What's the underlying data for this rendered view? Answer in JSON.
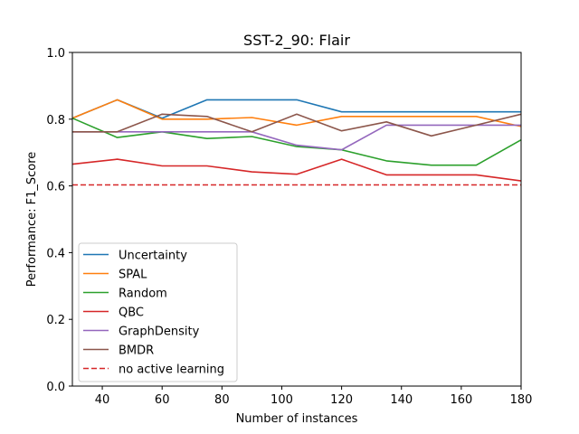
{
  "chart_data": {
    "type": "line",
    "title": "SST-2_90: Flair",
    "xlabel": "Number of instances",
    "ylabel": "Performance: F1_Score",
    "xlim": [
      30,
      180
    ],
    "ylim": [
      0.0,
      1.0
    ],
    "xticks": [
      40,
      60,
      80,
      100,
      120,
      140,
      160,
      180
    ],
    "yticks": [
      0.0,
      0.2,
      0.4,
      0.6,
      0.8,
      1.0
    ],
    "ytick_labels": [
      "0.0",
      "0.2",
      "0.4",
      "0.6",
      "0.8",
      "1.0"
    ],
    "grid": false,
    "legend_position": "lower-left",
    "x": [
      30,
      45,
      60,
      75,
      90,
      105,
      120,
      135,
      150,
      165,
      180
    ],
    "series": [
      {
        "name": "Uncertainty",
        "color": "#1f77b4",
        "style": "solid",
        "values": [
          0.803,
          0.858,
          0.803,
          0.858,
          0.858,
          0.858,
          0.822,
          0.822,
          0.822,
          0.822,
          0.822
        ]
      },
      {
        "name": "SPAL",
        "color": "#ff7f0e",
        "style": "solid",
        "values": [
          0.803,
          0.858,
          0.8,
          0.8,
          0.805,
          0.782,
          0.808,
          0.808,
          0.808,
          0.808,
          0.778
        ]
      },
      {
        "name": "Random",
        "color": "#2ca02c",
        "style": "solid",
        "values": [
          0.803,
          0.745,
          0.762,
          0.742,
          0.748,
          0.718,
          0.708,
          0.675,
          0.662,
          0.662,
          0.738
        ]
      },
      {
        "name": "QBC",
        "color": "#d62728",
        "style": "solid",
        "values": [
          0.665,
          0.68,
          0.66,
          0.66,
          0.642,
          0.635,
          0.68,
          0.633,
          0.633,
          0.633,
          0.615
        ]
      },
      {
        "name": "GraphDensity",
        "color": "#9467bd",
        "style": "solid",
        "values": [
          0.762,
          0.762,
          0.762,
          0.762,
          0.762,
          0.722,
          0.708,
          0.782,
          0.782,
          0.782,
          0.782
        ]
      },
      {
        "name": "BMDR",
        "color": "#8c564b",
        "style": "solid",
        "values": [
          0.762,
          0.762,
          0.815,
          0.808,
          0.762,
          0.815,
          0.765,
          0.792,
          0.75,
          0.782,
          0.815
        ]
      },
      {
        "name": "no active learning",
        "color": "#d62728",
        "style": "dashed",
        "values": [
          0.603,
          0.603,
          0.603,
          0.603,
          0.603,
          0.603,
          0.603,
          0.603,
          0.603,
          0.603,
          0.603
        ]
      }
    ]
  }
}
